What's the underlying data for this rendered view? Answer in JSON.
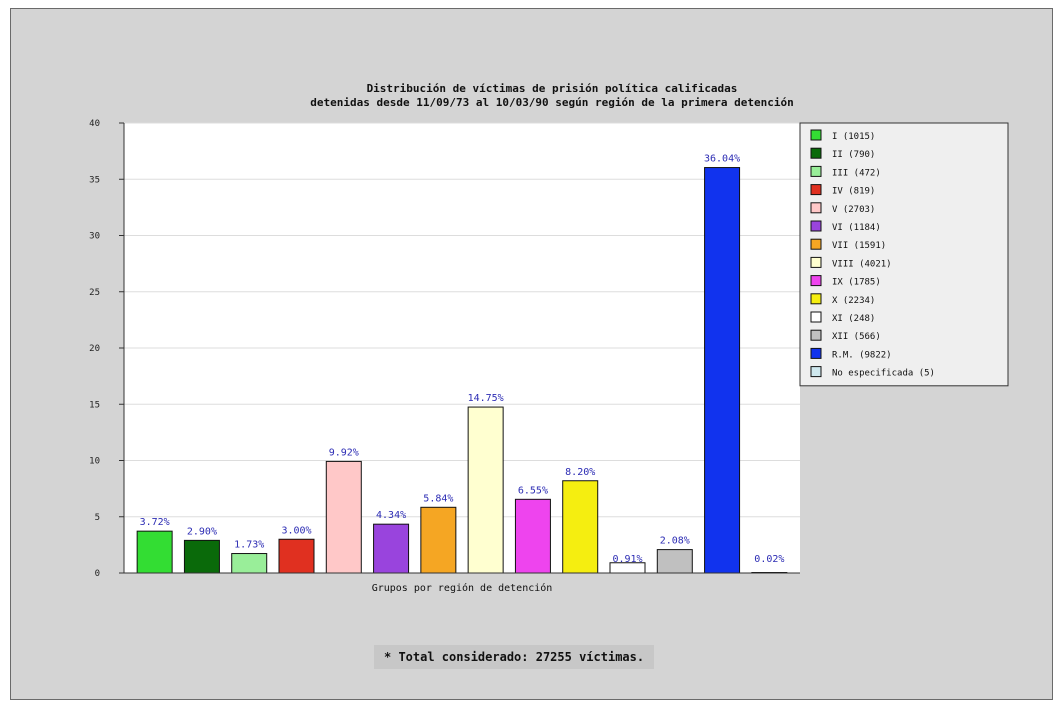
{
  "chart_data": {
    "type": "bar",
    "title": [
      "Distribución de víctimas de prisión política calificadas",
      "detenidas desde 11/09/73 al 10/03/90 según región de la primera detención"
    ],
    "xlabel": "Grupos por región de detención",
    "ylabel": "",
    "ylim": [
      0,
      40
    ],
    "yticks": [
      0,
      5,
      10,
      15,
      20,
      25,
      30,
      35,
      40
    ],
    "grid": true,
    "legend_position": "right",
    "categories": [
      "I (1015)",
      "II (790)",
      "III (472)",
      "IV (819)",
      "V (2703)",
      "VI (1184)",
      "VII (1591)",
      "VIII (4021)",
      "IX (1785)",
      "X (2234)",
      "XI (248)",
      "XII (566)",
      "R.M. (9822)",
      "No especificada (5)"
    ],
    "values": [
      3.72,
      2.9,
      1.73,
      3.0,
      9.92,
      4.34,
      5.84,
      14.75,
      6.55,
      8.2,
      0.91,
      2.08,
      36.04,
      0.02
    ],
    "value_labels": [
      "3.72%",
      "2.90%",
      "1.73%",
      "3.00%",
      "9.92%",
      "4.34%",
      "5.84%",
      "14.75%",
      "6.55%",
      "8.20%",
      "0.91%",
      "2.08%",
      "36.04%",
      "0.02%"
    ],
    "colors": [
      "#33dd33",
      "#0a6a0a",
      "#99ee99",
      "#e03020",
      "#ffc8c8",
      "#9944dd",
      "#f5a623",
      "#ffffd0",
      "#ee44ee",
      "#f5ee10",
      "#ffffff",
      "#c0c0c0",
      "#1133ee",
      "#cfe8ee"
    ]
  },
  "footer": {
    "total": "* Total considerado: 27255 víctimas."
  }
}
